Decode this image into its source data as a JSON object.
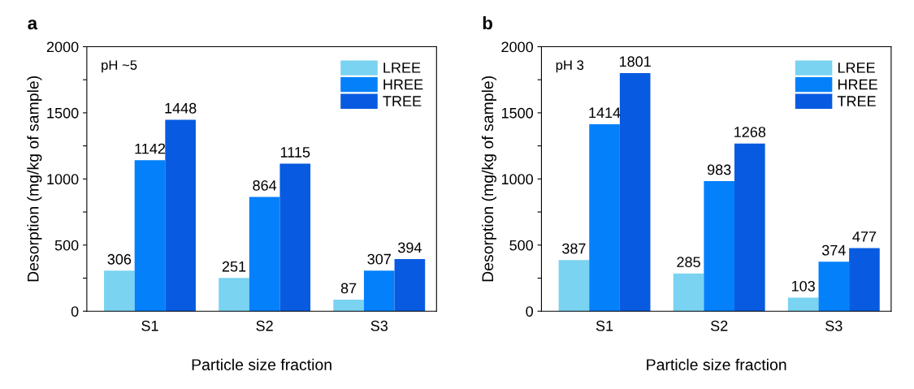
{
  "chart_data": [
    {
      "type": "bar",
      "title": "a",
      "xlabel": "Particle size fraction",
      "ylabel": "Desorption (mg/kg of sample)",
      "annotations": [
        "pH ~5"
      ],
      "categories": [
        "S1",
        "S2",
        "S3"
      ],
      "series": [
        {
          "name": "LREE",
          "color": "#79d3f1",
          "values": [
            306,
            251,
            87
          ]
        },
        {
          "name": "HREE",
          "color": "#0580fb",
          "values": [
            1142,
            864,
            307
          ]
        },
        {
          "name": "TREE",
          "color": "#085be0",
          "values": [
            1448,
            1115,
            394
          ]
        }
      ],
      "ylim": [
        0,
        2000
      ],
      "yticks": [
        0,
        {
          "value": 250,
          "label": null
        },
        500,
        {
          "value": 750,
          "label": null
        },
        1000,
        {
          "value": 1250,
          "label": null
        },
        1500,
        {
          "value": 1750,
          "label": null
        },
        2000
      ],
      "data_labels": true,
      "legend": "top right",
      "grid": false
    },
    {
      "type": "bar",
      "title": "b",
      "xlabel": "Particle size fraction",
      "ylabel": "Desorption (mg/kg of sample)",
      "annotations": [
        "pH 3"
      ],
      "categories": [
        "S1",
        "S2",
        "S3"
      ],
      "series": [
        {
          "name": "LREE",
          "color": "#79d3f1",
          "values": [
            387,
            285,
            103
          ]
        },
        {
          "name": "HREE",
          "color": "#0580fb",
          "values": [
            1414,
            983,
            374
          ]
        },
        {
          "name": "TREE",
          "color": "#085be0",
          "values": [
            1801,
            1268,
            477
          ]
        }
      ],
      "ylim": [
        0,
        2000
      ],
      "yticks": [
        0,
        {
          "value": 250,
          "label": null
        },
        500,
        {
          "value": 750,
          "label": null
        },
        1000,
        {
          "value": 1250,
          "label": null
        },
        1500,
        {
          "value": 1750,
          "label": null
        },
        2000
      ],
      "data_labels": true,
      "legend": "top right",
      "grid": false
    }
  ]
}
